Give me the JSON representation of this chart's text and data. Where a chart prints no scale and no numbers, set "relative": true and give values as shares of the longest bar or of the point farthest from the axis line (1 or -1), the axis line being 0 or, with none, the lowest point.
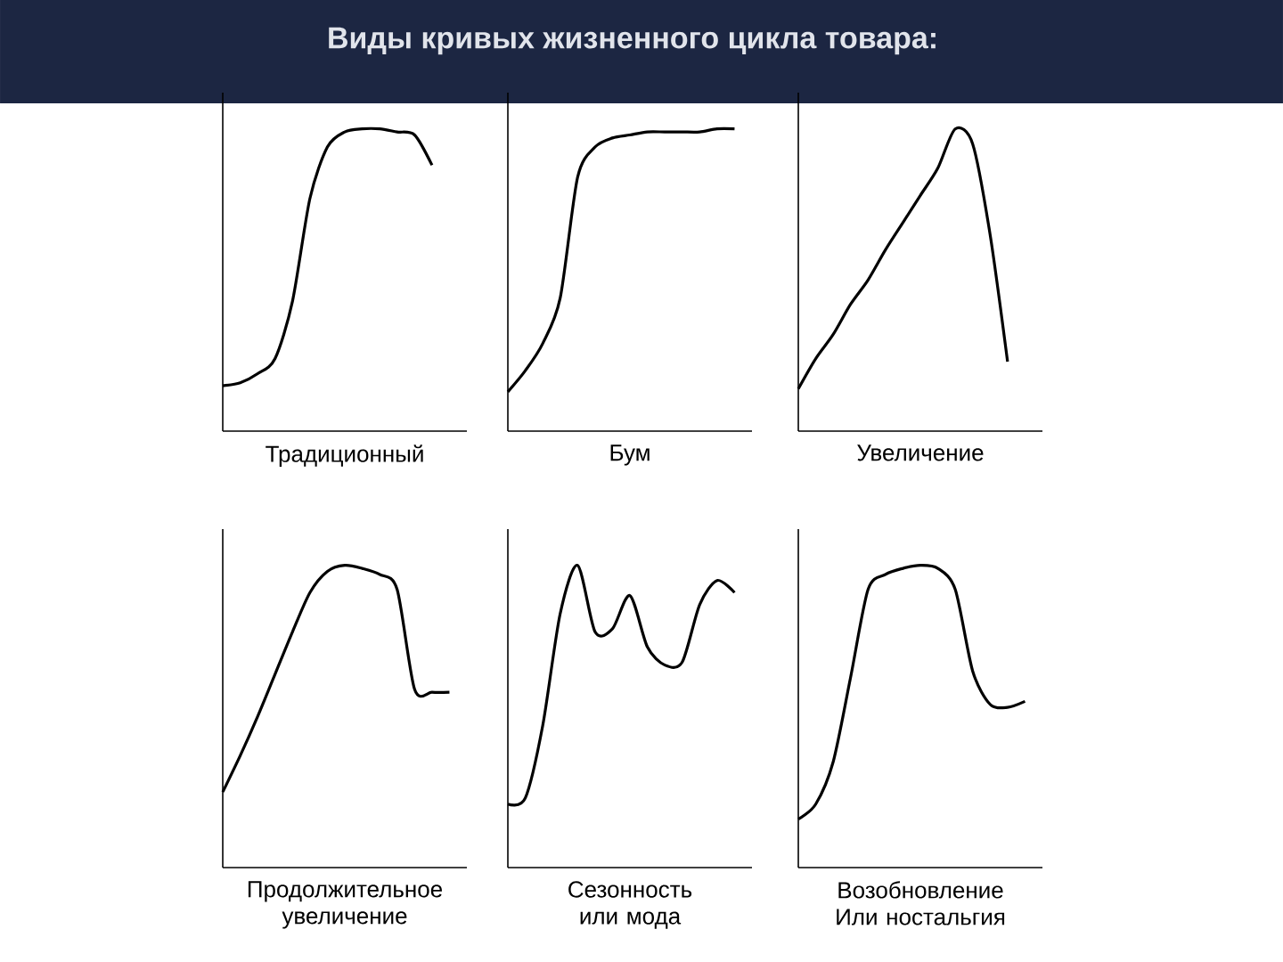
{
  "chart_data": [
    {
      "type": "line",
      "relative": true,
      "title": "Виды кривых жизненного цикла товара:",
      "xlabel": "Традиционный",
      "color": "#000000",
      "categories": [
        null,
        null,
        null,
        null,
        null,
        null,
        null,
        null,
        null,
        null,
        null,
        null,
        null,
        null,
        null
      ],
      "values": [
        0.15,
        0.16,
        0.19,
        0.24,
        0.43,
        0.77,
        0.94,
        0.99,
        1,
        1,
        0.99,
        0.98,
        0.88,
        null,
        null
      ]
    },
    {
      "type": "line",
      "relative": true,
      "xlabel": "Бум",
      "color": "#000000",
      "categories": [
        null,
        null,
        null,
        null,
        null,
        null,
        null,
        null,
        null,
        null,
        null,
        null,
        null,
        null,
        null
      ],
      "values": [
        0.13,
        0.2,
        0.29,
        0.44,
        0.84,
        0.94,
        0.97,
        0.98,
        0.99,
        0.99,
        0.99,
        0.99,
        1,
        1,
        null
      ]
    },
    {
      "type": "line",
      "relative": true,
      "xlabel": "Увеличение",
      "color": "#000000",
      "categories": [
        null,
        null,
        null,
        null,
        null,
        null,
        null,
        null,
        null,
        null,
        null,
        null,
        null,
        null,
        null
      ],
      "values": [
        0.14,
        0.24,
        0.32,
        0.42,
        0.5,
        0.6,
        0.69,
        0.78,
        0.87,
        1,
        0.95,
        0.65,
        0.23,
        null,
        null
      ]
    },
    {
      "type": "line",
      "relative": true,
      "xlabel": "Продолжительное увеличение",
      "color": "#000000",
      "categories": [
        null,
        null,
        null,
        null,
        null,
        null,
        null,
        null,
        null,
        null,
        null,
        null,
        null,
        null,
        null
      ],
      "values": [
        0.25,
        0.37,
        0.5,
        0.64,
        0.78,
        0.91,
        0.98,
        1,
        0.99,
        0.97,
        0.92,
        0.59,
        0.58,
        0.58,
        null
      ]
    },
    {
      "type": "line",
      "relative": true,
      "xlabel": "Сезонность или мода",
      "color": "#000000",
      "categories": [
        null,
        null,
        null,
        null,
        null,
        null,
        null,
        null,
        null,
        null,
        null,
        null,
        null,
        null,
        null
      ],
      "values": [
        0.21,
        0.23,
        0.47,
        0.84,
        1,
        0.78,
        0.79,
        0.9,
        0.73,
        0.67,
        0.68,
        0.87,
        0.95,
        0.91,
        null
      ]
    },
    {
      "type": "line",
      "relative": true,
      "xlabel": "Возобновление Или ностальгия",
      "color": "#000000",
      "categories": [
        null,
        null,
        null,
        null,
        null,
        null,
        null,
        null,
        null,
        null,
        null,
        null,
        null,
        null,
        null
      ],
      "values": [
        0.16,
        0.21,
        0.35,
        0.63,
        0.92,
        0.97,
        0.99,
        1,
        0.99,
        0.92,
        0.65,
        0.54,
        0.53,
        0.55,
        null
      ]
    }
  ]
}
